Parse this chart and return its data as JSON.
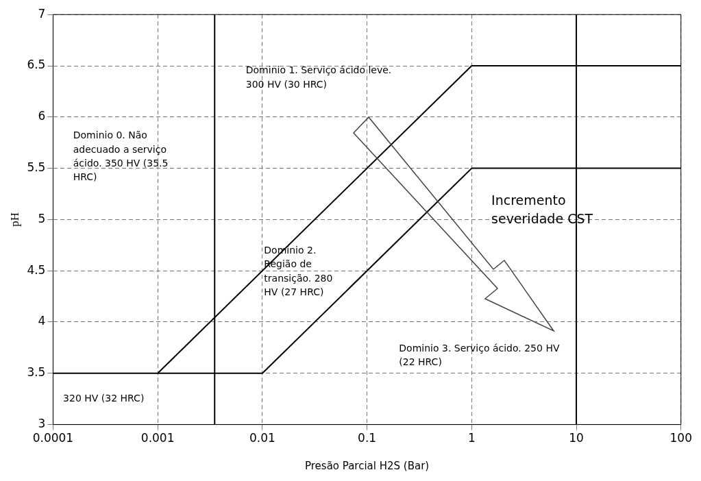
{
  "chart_data": {
    "type": "line",
    "xlabel": "Presão Parcial H2S (Bar)",
    "ylabel": "pH",
    "log": "x",
    "grid": true,
    "legend": false,
    "marker": "none",
    "line_style": "solid",
    "xlim": [
      0.0001,
      100
    ],
    "xticks": [
      0.0001,
      0.001,
      0.01,
      0.1,
      1,
      10,
      100
    ],
    "ylim": [
      3,
      7
    ],
    "yticks": [
      3,
      3.5,
      4,
      4.5,
      5,
      5.5,
      6,
      6.5,
      7
    ],
    "series": [
      {
        "color": "#000000",
        "x": [
          0.0001,
          0.001,
          1,
          100
        ],
        "values": [
          3.5,
          3.5,
          6.5,
          6.5
        ]
      },
      {
        "color": "#000000",
        "x": [
          0.001,
          0.01,
          1,
          100
        ],
        "values": [
          3.5,
          3.5,
          5.5,
          5.5
        ]
      }
    ],
    "ref_lines": [
      {
        "axis": "x",
        "value": 0.0035,
        "color": "#000000"
      },
      {
        "axis": "x",
        "value": 10,
        "color": "#000000"
      }
    ],
    "annotations": [
      "Dominio 0. Não adecuado a serviço ácido. 350 HV (35.5 HRC)",
      "Dominio 1. Serviço ácido leve. 300 HV (30 HRC)",
      "Dominio 2. Região de transição. 280 HV (27 HRC)",
      "Dominio 3. Serviço ácido. 250 HV (22 HRC)",
      "Incremento severidade CST",
      "320 HV (32 HRC)"
    ]
  }
}
